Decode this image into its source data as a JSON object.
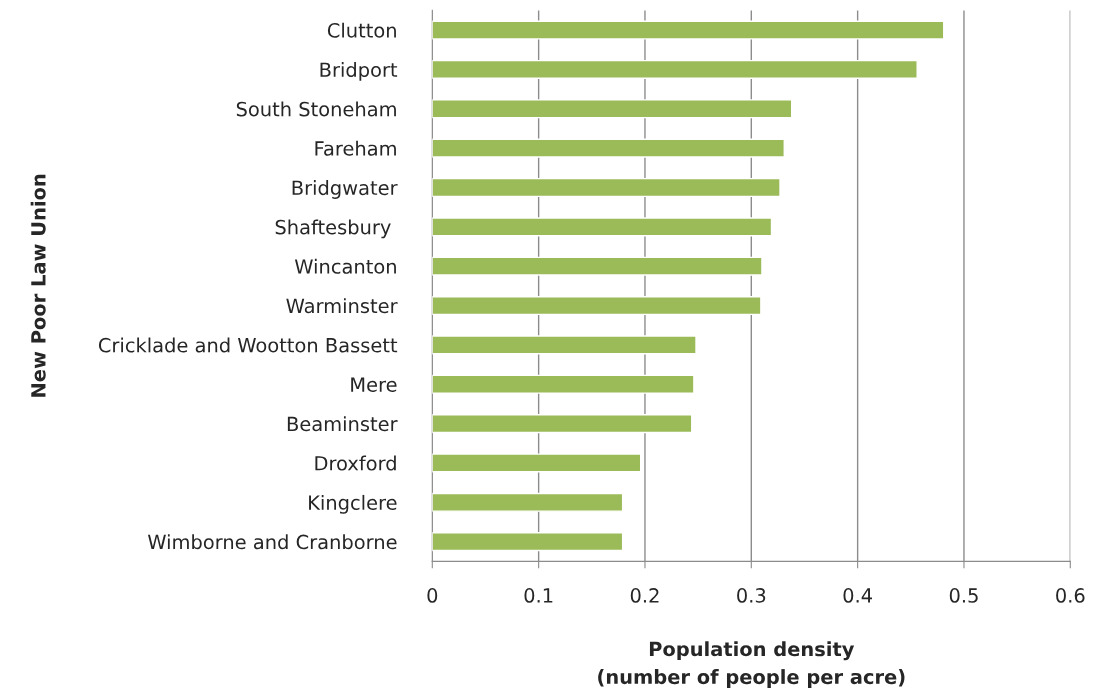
{
  "chart_data": {
    "type": "bar",
    "orientation": "horizontal",
    "xlabel": "Population density\n(number of people per acre)",
    "ylabel": "New Poor Law Union",
    "categories": [
      "Clutton",
      "Bridport",
      "South Stoneham",
      "Fareham",
      "Bridgwater",
      "Shaftesbury ",
      "Wincanton",
      "Warminster",
      "Cricklade and Wootton Bassett",
      "Mere",
      "Beaminster",
      "Droxford",
      "Kingclere",
      "Wimborne and Cranborne"
    ],
    "values": [
      0.481,
      0.456,
      0.338,
      0.331,
      0.327,
      0.319,
      0.31,
      0.309,
      0.248,
      0.246,
      0.244,
      0.196,
      0.179,
      0.179
    ],
    "color": "#9bbb59",
    "xlim": [
      0,
      0.6
    ],
    "xticks": [
      0,
      0.1,
      0.2,
      0.3,
      0.4,
      0.5,
      0.6
    ],
    "grid": "x"
  }
}
